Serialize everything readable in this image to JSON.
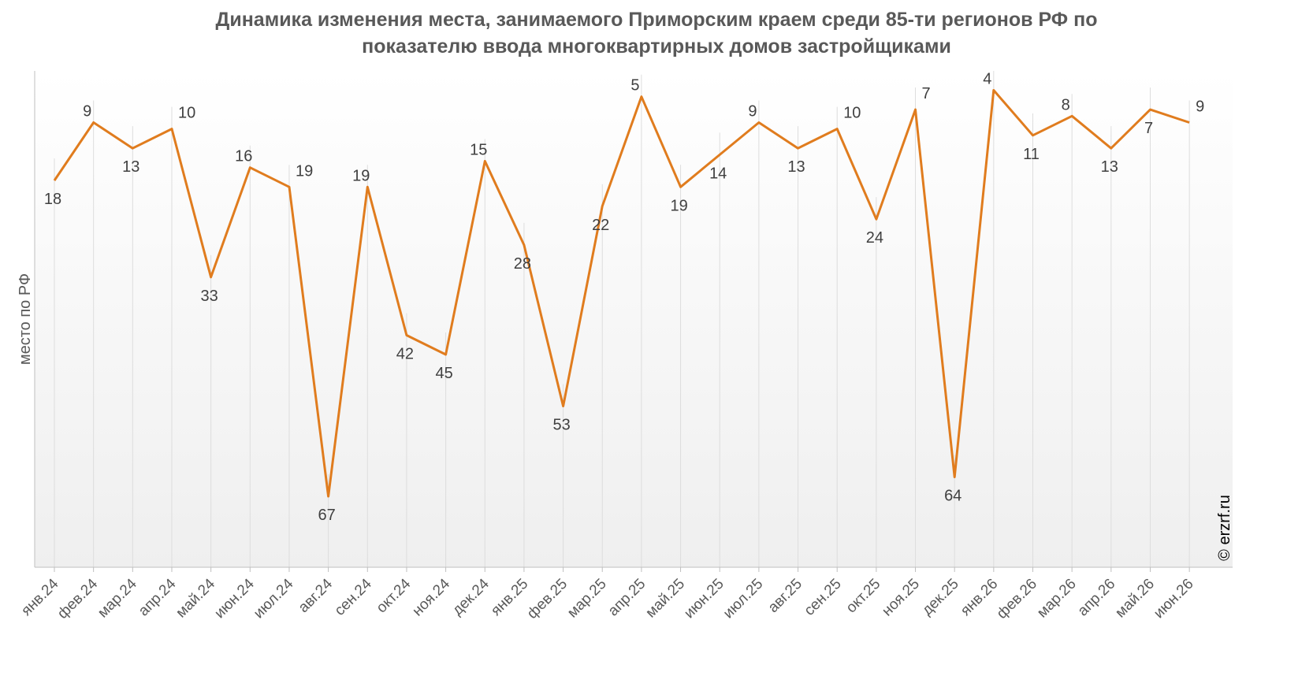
{
  "title_line1": "Динамика изменения места, занимаемого Приморским краем среди 85-ти регионов РФ по",
  "title_line2": "показателю ввода многоквартирных домов застройщиками",
  "copyright": "© erzrf.ru",
  "colors": {
    "line": "#E07C1E",
    "grid": "#d9d9d9",
    "axis": "#bfbfbf",
    "text": "#595959"
  },
  "chart_data": {
    "type": "line",
    "title": "Динамика изменения места, занимаемого Приморским краем среди 85-ти регионов РФ по показателю ввода многоквартирных домов застройщиками",
    "ylabel": "место по РФ",
    "xlabel": "",
    "y_inverted": true,
    "ylim": [
      1,
      78
    ],
    "grid": "vertical",
    "categories": [
      "янв.24",
      "фев.24",
      "мар.24",
      "апр.24",
      "май.24",
      "июн.24",
      "июл.24",
      "авг.24",
      "сен.24",
      "окт.24",
      "ноя.24",
      "дек.24",
      "янв.25",
      "фев.25",
      "мар.25",
      "апр.25",
      "май.25",
      "июн.25",
      "июл.25",
      "авг.25",
      "сен.25",
      "окт.25",
      "ноя.25",
      "дек.25",
      "янв.26",
      "фев.26",
      "мар.26",
      "апр.26",
      "май.26",
      "июн.26"
    ],
    "series": [
      {
        "values": [
          18,
          9,
          13,
          10,
          33,
          16,
          19,
          67,
          19,
          42,
          45,
          15,
          28,
          53,
          22,
          5,
          19,
          14,
          9,
          13,
          10,
          24,
          7,
          64,
          4,
          11,
          8,
          13,
          7,
          9
        ]
      }
    ]
  }
}
